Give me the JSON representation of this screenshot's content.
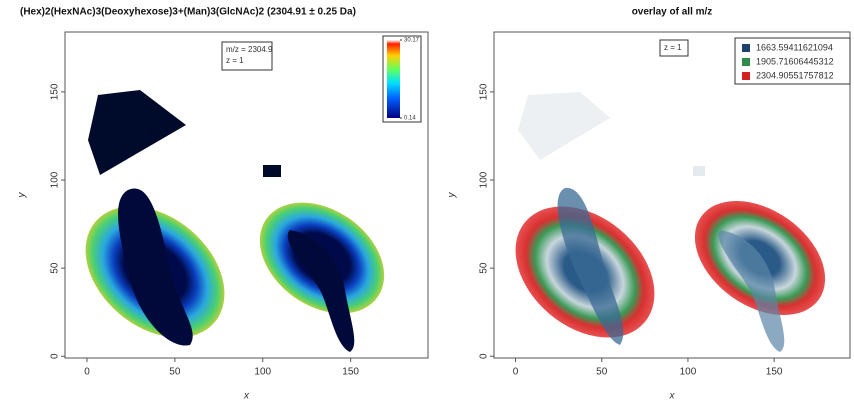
{
  "chart_data": [
    {
      "type": "image",
      "title": "(Hex)2(HexNAc)3(Deoxyhexose)3+(Man)3(GlcNAc)2 (2304.91 ± 0.25 Da)",
      "xlabel": "x",
      "ylabel": "y",
      "xlim": [
        -12.5,
        194
      ],
      "ylim": [
        -1,
        184
      ],
      "xticks": [
        0,
        50,
        100,
        150
      ],
      "yticks": [
        0,
        50,
        100,
        150
      ],
      "annotations": [
        "m/z = 2304.9",
        "z = 1"
      ],
      "colorbar": {
        "lim": [
          0.14,
          30.17
        ],
        "ticks": [
          30.17,
          0.14
        ]
      }
    },
    {
      "type": "image",
      "title": "overlay of all m/z",
      "xlabel": "x",
      "ylabel": "y",
      "xlim": [
        -12.5,
        194
      ],
      "ylim": [
        -1,
        184
      ],
      "xticks": [
        0,
        50,
        100,
        150
      ],
      "yticks": [
        0,
        50,
        100,
        150
      ],
      "annotations": [
        "z = 1"
      ],
      "series": [
        {
          "name": "1663.59411621094",
          "color": "#1f3f6e"
        },
        {
          "name": "1905.71606445312",
          "color": "#2e8b4a"
        },
        {
          "name": "2304.90551757812",
          "color": "#d42020"
        }
      ]
    }
  ]
}
